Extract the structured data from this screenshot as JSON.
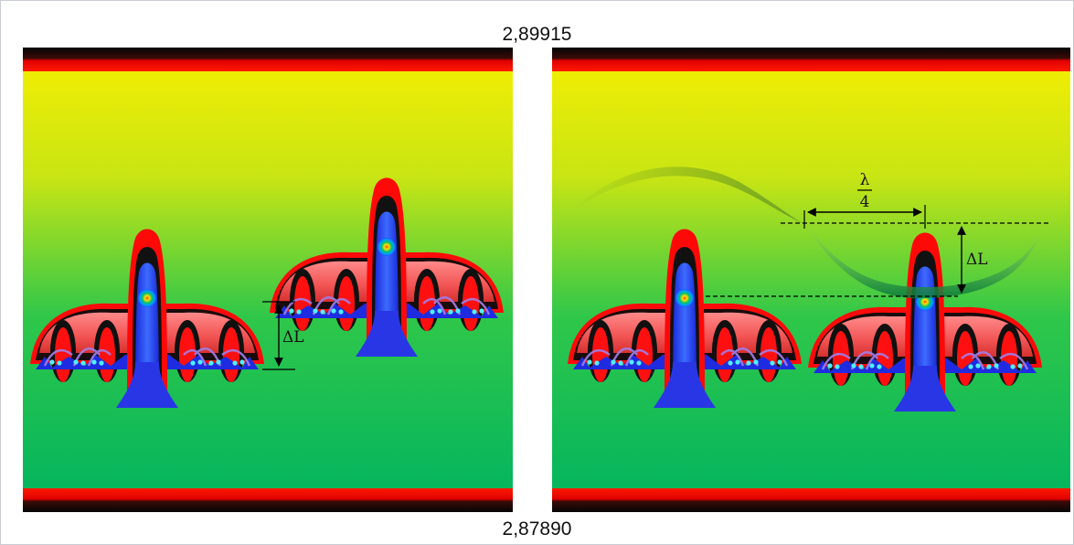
{
  "scale": {
    "top_value": "2,89915",
    "bottom_value": "2,87890"
  },
  "left_panel": {
    "offset_label": "ΔL"
  },
  "right_panel": {
    "offset_label": "ΔL",
    "fraction_numerator": "λ",
    "fraction_denominator": "4"
  }
}
